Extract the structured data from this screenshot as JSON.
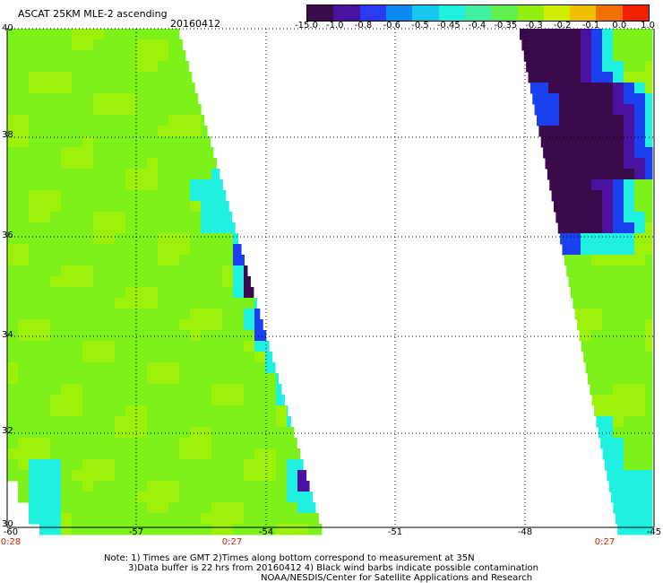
{
  "header": {
    "title": "ASCAT 25KM MLE-2 ascending",
    "date": "20160412"
  },
  "colorbar": {
    "labels": [
      "-15.0",
      "-1.0",
      "-0.8",
      "-0.6",
      "-0.5",
      "-0.45",
      "-0.4",
      "-0.35",
      "-0.3",
      "-0.2",
      "-0.1",
      "0.0",
      "1.0"
    ],
    "colors": [
      "#3a0a4a",
      "#4a12a0",
      "#2a3af0",
      "#0a8af0",
      "#18c8f0",
      "#20f0e0",
      "#40f0a0",
      "#60f050",
      "#90f010",
      "#d0f000",
      "#f0c000",
      "#f07000",
      "#f02000"
    ]
  },
  "axes": {
    "lat_labels": [
      "40",
      "38",
      "36",
      "34",
      "32",
      "30"
    ],
    "lon_labels": [
      "-60",
      "-57",
      "-54",
      "-51",
      "-48",
      "-45"
    ],
    "time_labels": [
      "0:28",
      "0:27",
      "0:27"
    ]
  },
  "notes": {
    "line1": "Note: 1) Times are GMT 2)Times along bottom correspond to measurement at 35N",
    "line2": "3)Data buffer is 22 hrs from 20160412 4) Black wind barbs indicate possible contamination",
    "line3": "NOAA/NESDIS/Center for Satellite Applications and Research"
  },
  "palette": {
    "green_base": "#7cf21a",
    "green_light": "#9cf00a",
    "cyan": "#20f0e0",
    "blue": "#1a40f0",
    "purple": "#4a12a0",
    "dark": "#3a0a4a"
  }
}
